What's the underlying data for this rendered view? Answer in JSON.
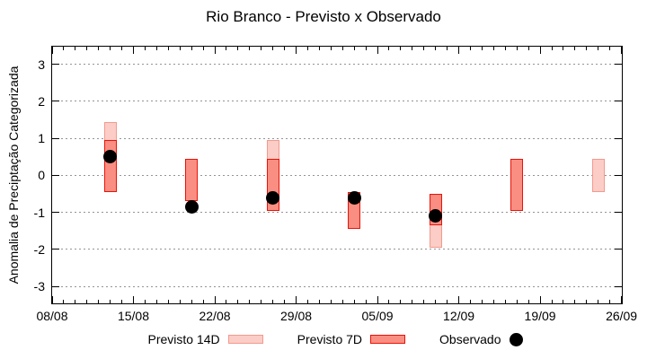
{
  "title": "Rio Branco - Previsto x Observado",
  "chart_data": {
    "type": "bar",
    "subtype": "forecast-range-bars-with-observed-dots",
    "title": "Rio Branco - Previsto x Observado",
    "xlabel": "",
    "ylabel": "Anomalia de Preciptação Categorizada",
    "ylim": [
      -3.5,
      3.5
    ],
    "yticks": [
      3,
      2,
      1,
      0,
      -1,
      -2,
      -3
    ],
    "xticks": [
      "08/08",
      "15/08",
      "22/08",
      "29/08",
      "05/09",
      "12/09",
      "19/09",
      "26/09"
    ],
    "x_axis_span_days": 49,
    "grid": "horizontal dotted gray",
    "legend_position": "bottom center",
    "legend": [
      {
        "label": "Previsto 14D",
        "type": "box",
        "fill": "#fbcdc6",
        "border": "#f29a8e"
      },
      {
        "label": "Previsto 7D",
        "type": "box",
        "fill": "#fa8e82",
        "border": "#e81309"
      },
      {
        "label": "Observado",
        "type": "dot",
        "fill": "#000000"
      }
    ],
    "series": [
      {
        "date": "13/08",
        "day_offset": 5,
        "previsto14": [
          -0.45,
          1.45
        ],
        "previsto7": [
          -0.45,
          0.95
        ],
        "observado": 0.5
      },
      {
        "date": "20/08",
        "day_offset": 12,
        "previsto14": null,
        "previsto7": [
          -0.7,
          0.45
        ],
        "observado": -0.85
      },
      {
        "date": "27/08",
        "day_offset": 19,
        "previsto14": [
          -0.95,
          0.95
        ],
        "previsto7": [
          -0.95,
          0.45
        ],
        "observado": -0.6
      },
      {
        "date": "03/09",
        "day_offset": 26,
        "previsto14": null,
        "previsto7": [
          -1.45,
          -0.45
        ],
        "observado": -0.6
      },
      {
        "date": "10/09",
        "day_offset": 33,
        "previsto14": [
          -1.95,
          -0.5
        ],
        "previsto7": [
          -1.35,
          -0.5
        ],
        "observado": -1.1
      },
      {
        "date": "17/09",
        "day_offset": 40,
        "previsto14": null,
        "previsto7": [
          -0.95,
          0.45
        ],
        "observado": null
      },
      {
        "date": "24/09",
        "day_offset": 47,
        "previsto14": [
          -0.45,
          0.45
        ],
        "previsto7": null,
        "observado": null
      }
    ]
  },
  "colors": {
    "background": "#ffffff",
    "axis": "#000000",
    "grid": "#949494",
    "text": "#000000",
    "previsto14_fill": "#fbcdc6",
    "previsto14_border": "#f29a8e",
    "previsto7_fill": "#fa8e82",
    "previsto7_border": "#e81309",
    "observado": "#000000"
  }
}
